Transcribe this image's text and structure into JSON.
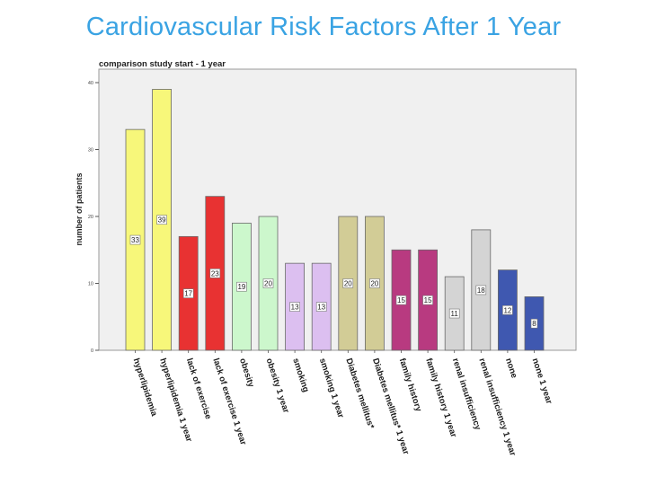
{
  "title": "Cardiovascular Risk Factors After 1 Year",
  "chart_data": {
    "type": "bar",
    "title": "comparison study start - 1 year",
    "xlabel": "",
    "ylabel": "number of patients",
    "ylim": [
      0,
      40
    ],
    "yticks": [
      "0",
      "10",
      "20",
      "30",
      "40"
    ],
    "grid": false,
    "categories": [
      "hyperlipidemia",
      "hyperlipidemia 1 year",
      "lack of exercise",
      "lack of exercise 1 year",
      "obesity",
      "obesity 1 year",
      "smoking",
      "smoking 1 year",
      "Diabetes mellitus*",
      "Diabetes mellitus* 1 year",
      "family history",
      "family history 1 year",
      "renal insufficiency",
      "renal insufficiency 1 year",
      "none",
      "none 1 year"
    ],
    "values": [
      33,
      39,
      17,
      23,
      19,
      20,
      13,
      13,
      20,
      20,
      15,
      15,
      11,
      18,
      12,
      8
    ],
    "value_labels": [
      "33",
      "39",
      "17",
      "23",
      "19",
      "20",
      "13",
      "13",
      "20",
      "20",
      "15",
      "15",
      "11",
      "18",
      "12",
      "8"
    ],
    "colors": [
      "#f7f77a",
      "#f7f77a",
      "#e83232",
      "#e83232",
      "#ccf7cc",
      "#ccf7cc",
      "#dcbff0",
      "#dcbff0",
      "#d2cc96",
      "#d2cc96",
      "#b83a80",
      "#b83a80",
      "#d4d4d4",
      "#d4d4d4",
      "#3f58b0",
      "#3f58b0"
    ]
  }
}
